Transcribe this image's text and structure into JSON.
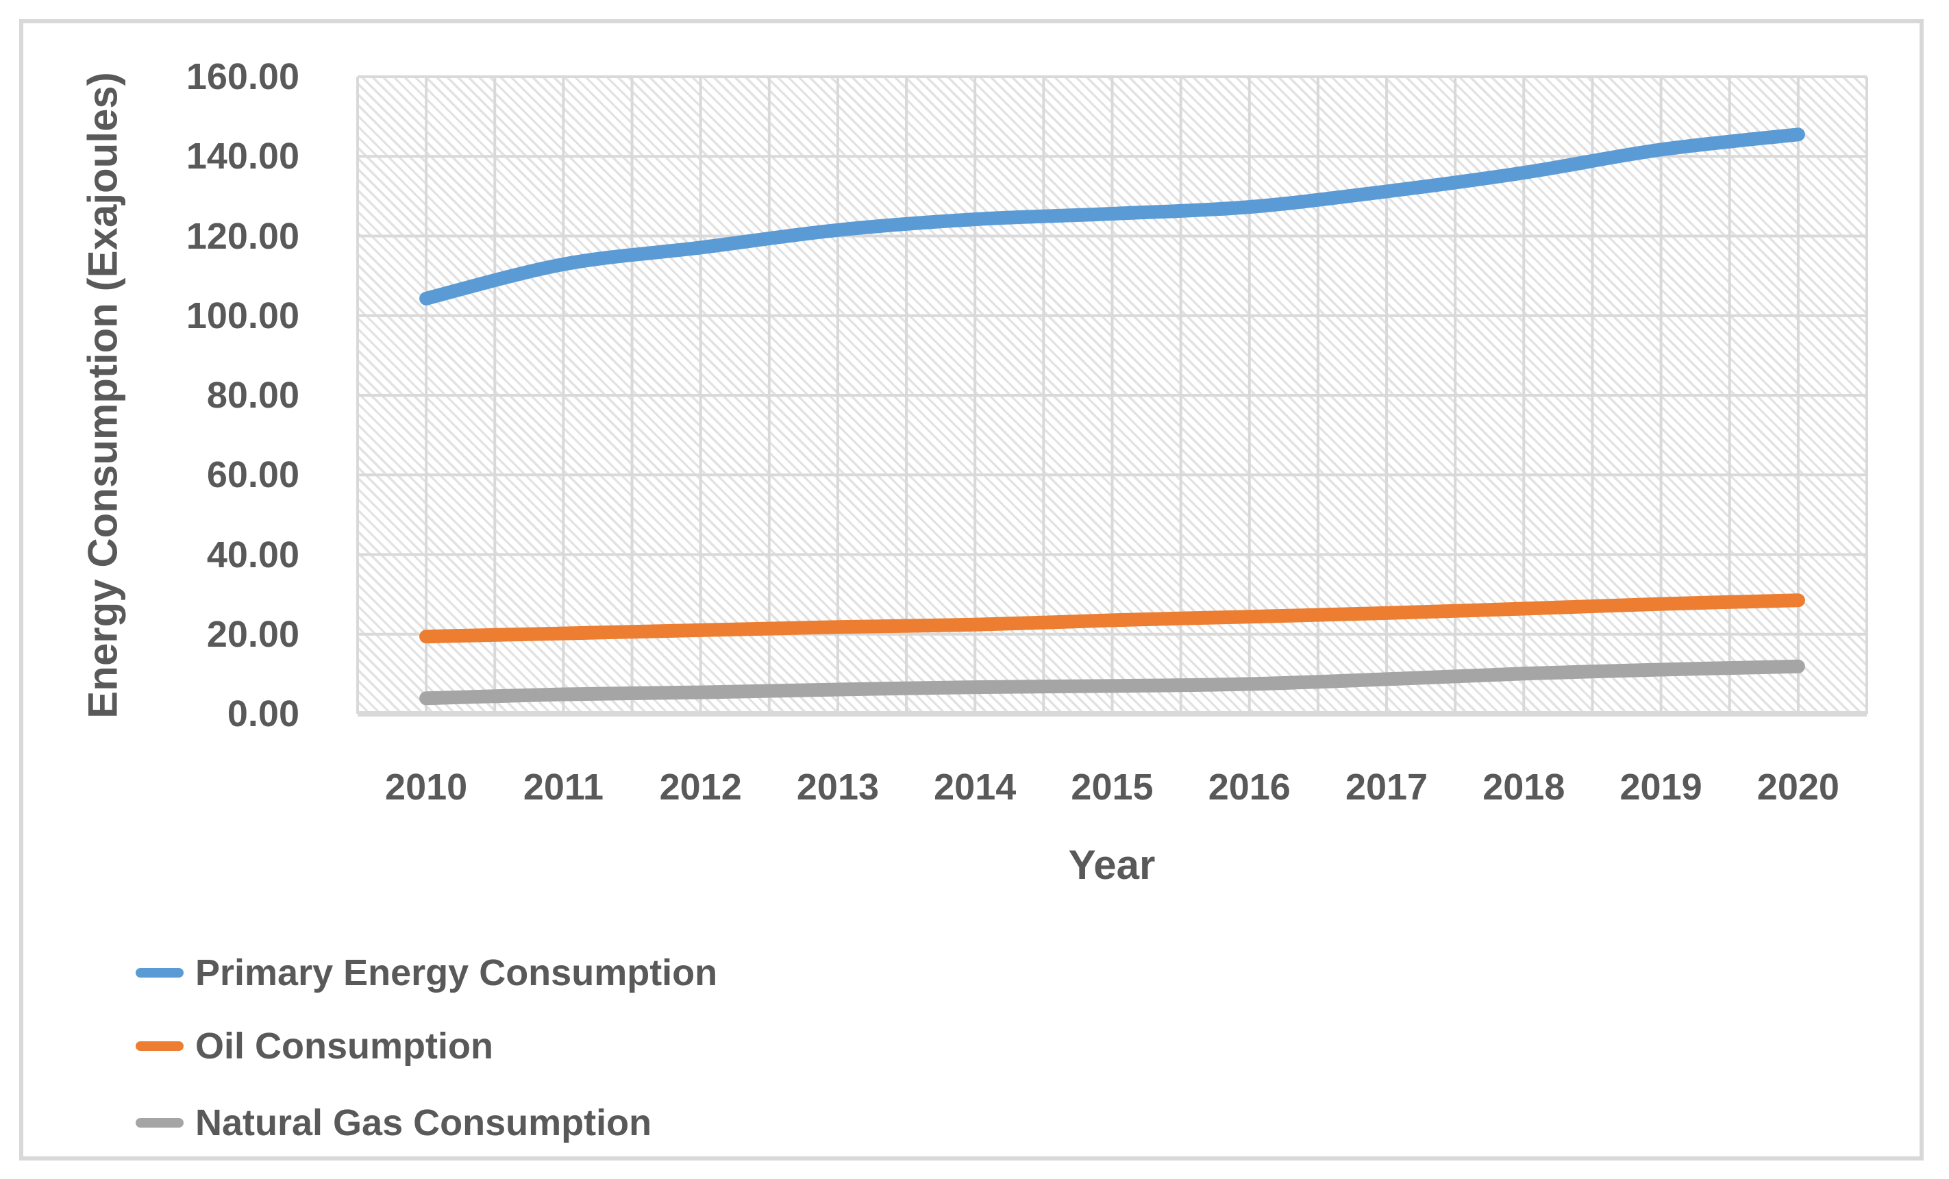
{
  "chart_data": {
    "type": "line",
    "title": "",
    "xlabel": "Year",
    "ylabel": "Energy Consumption (Exajoules)",
    "categories": [
      "2010",
      "2011",
      "2012",
      "2013",
      "2014",
      "2015",
      "2016",
      "2017",
      "2018",
      "2019",
      "2020"
    ],
    "series": [
      {
        "name": "Primary Energy Consumption",
        "color": "#5B9BD5",
        "values": [
          104.3,
          112.9,
          117.1,
          121.5,
          124.2,
          125.6,
          127.3,
          131.2,
          135.9,
          141.7,
          145.5
        ]
      },
      {
        "name": "Oil Consumption",
        "color": "#ED7D31",
        "values": [
          19.4,
          20.2,
          21.0,
          21.8,
          22.4,
          23.5,
          24.4,
          25.3,
          26.4,
          27.6,
          28.5
        ]
      },
      {
        "name": "Natural Gas Consumption",
        "color": "#A5A5A5",
        "values": [
          3.9,
          4.9,
          5.4,
          6.1,
          6.7,
          7.0,
          7.5,
          8.7,
          10.1,
          11.1,
          11.9
        ]
      }
    ],
    "ylim": [
      0,
      160
    ],
    "ytick_step": 20,
    "ytick_labels": [
      "0.00",
      "20.00",
      "40.00",
      "60.00",
      "80.00",
      "100.00",
      "120.00",
      "140.00",
      "160.00"
    ],
    "grid": "both",
    "legend_position": "bottom-left",
    "plot_background": "light-diagonal-hatch"
  },
  "colors": {
    "gridline": "#D9D9D9",
    "axis_line": "#D9D9D9",
    "text": "#595959",
    "hatch": "#E2E2E2",
    "frame_border": "#D8D8D8",
    "background": "#FFFFFF"
  }
}
